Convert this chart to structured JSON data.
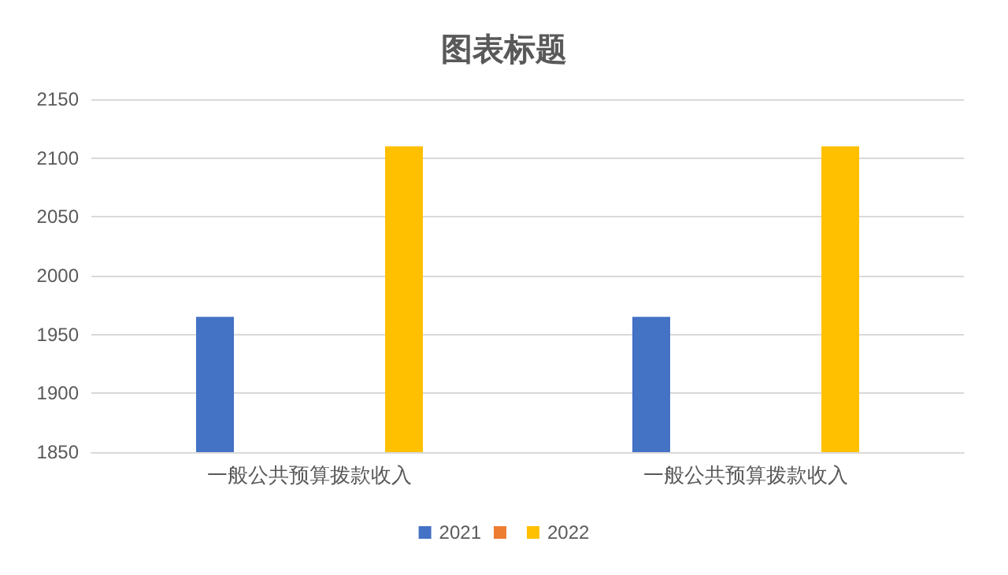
{
  "chart_data": {
    "type": "bar",
    "title": "图表标题",
    "categories": [
      "一般公共预算拨款收入",
      "一般公共预算拨款收入"
    ],
    "series": [
      {
        "name": "2021",
        "color": "#4472c4",
        "values": [
          1965,
          1965
        ]
      },
      {
        "color": "#ed7d31",
        "values": [
          null,
          null
        ]
      },
      {
        "name": "2022",
        "color": "#ffc000",
        "values": [
          2110,
          2110
        ]
      }
    ],
    "ylim": [
      1850,
      2150
    ],
    "yticks": [
      1850,
      1900,
      1950,
      2000,
      2050,
      2100,
      2150
    ],
    "grid": "y",
    "legend": "bottom"
  }
}
